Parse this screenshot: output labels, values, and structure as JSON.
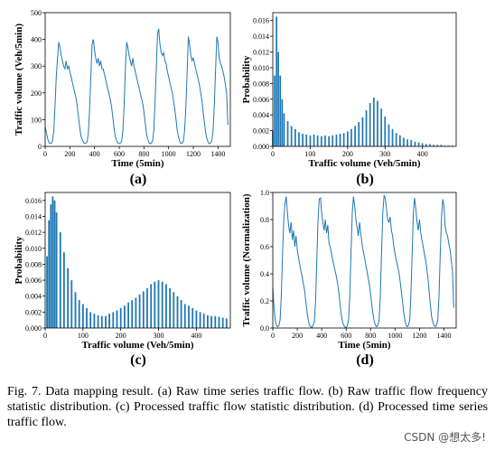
{
  "caption": "Fig. 7.   Data mapping result. (a) Raw time series traffic flow. (b) Raw traffic flow frequency statistic distribution. (c) Processed traffic flow statistic distribution. (d) Processed time series traffic flow.",
  "watermark": "CSDN @想太多!",
  "colors": {
    "line": "#1f77b4",
    "bar": "#1f77b4"
  },
  "chart_data": [
    {
      "id": "a",
      "panel_label": "(a)",
      "type": "line",
      "xlabel": "Time (5min)",
      "ylabel": "Traffic volume (Veh/5min)",
      "xlim": [
        0,
        1500
      ],
      "ylim": [
        0,
        500
      ],
      "xticks": [
        "0",
        "200",
        "400",
        "600",
        "800",
        "1000",
        "1200",
        "1400"
      ],
      "yticks": [
        "0",
        "100",
        "200",
        "300",
        "400",
        "500"
      ],
      "x": [
        0,
        10,
        20,
        30,
        40,
        50,
        60,
        70,
        80,
        90,
        100,
        110,
        120,
        130,
        140,
        150,
        160,
        170,
        180,
        190,
        200,
        210,
        220,
        230,
        240,
        250,
        260,
        270,
        280,
        290,
        300,
        310,
        320,
        330,
        340,
        350,
        360,
        370,
        380,
        390,
        400,
        410,
        420,
        430,
        440,
        450,
        460,
        470,
        480,
        490,
        500,
        510,
        520,
        530,
        540,
        550,
        560,
        570,
        580,
        590,
        600,
        610,
        620,
        630,
        640,
        650,
        660,
        670,
        680,
        690,
        700,
        710,
        720,
        730,
        740,
        750,
        760,
        770,
        780,
        790,
        800,
        810,
        820,
        830,
        840,
        850,
        860,
        870,
        880,
        890,
        900,
        910,
        920,
        930,
        940,
        950,
        960,
        970,
        980,
        990,
        1000,
        1010,
        1020,
        1030,
        1040,
        1050,
        1060,
        1070,
        1080,
        1090,
        1100,
        1110,
        1120,
        1130,
        1140,
        1150,
        1160,
        1170,
        1180,
        1190,
        1200,
        1210,
        1220,
        1230,
        1240,
        1250,
        1260,
        1270,
        1280,
        1290,
        1300,
        1310,
        1320,
        1330,
        1340,
        1350,
        1360,
        1370,
        1380,
        1390,
        1400,
        1410,
        1420,
        1430,
        1440,
        1450,
        1460,
        1470,
        1480
      ],
      "values": [
        75,
        50,
        30,
        15,
        10,
        12,
        20,
        60,
        150,
        260,
        330,
        390,
        370,
        340,
        320,
        300,
        290,
        320,
        290,
        300,
        280,
        260,
        240,
        220,
        200,
        180,
        150,
        110,
        70,
        40,
        25,
        15,
        10,
        12,
        18,
        50,
        140,
        260,
        380,
        400,
        360,
        330,
        310,
        330,
        300,
        320,
        290,
        290,
        270,
        250,
        230,
        210,
        190,
        170,
        140,
        100,
        60,
        35,
        20,
        12,
        10,
        12,
        20,
        60,
        160,
        290,
        390,
        370,
        340,
        320,
        300,
        330,
        300,
        280,
        260,
        240,
        220,
        200,
        180,
        160,
        130,
        90,
        50,
        30,
        15,
        10,
        12,
        20,
        60,
        160,
        290,
        420,
        440,
        380,
        350,
        340,
        350,
        320,
        310,
        280,
        260,
        240,
        220,
        200,
        170,
        140,
        100,
        60,
        35,
        18,
        10,
        12,
        20,
        60,
        150,
        280,
        410,
        380,
        340,
        320,
        330,
        310,
        290,
        270,
        250,
        230,
        200,
        170,
        130,
        90,
        50,
        30,
        15,
        10,
        12,
        20,
        60,
        150,
        280,
        410,
        390,
        330,
        310,
        300,
        280,
        260,
        230,
        200,
        80
      ]
    },
    {
      "id": "b",
      "panel_label": "(b)",
      "type": "bar",
      "xlabel": "Traffic volume (Veh/5min)",
      "ylabel": "Probability",
      "xlim": [
        0,
        490
      ],
      "ylim": [
        0,
        0.017
      ],
      "xticks": [
        "0",
        "100",
        "200",
        "300",
        "400"
      ],
      "yticks": [
        "0.000",
        "0.002",
        "0.004",
        "0.006",
        "0.008",
        "0.010",
        "0.012",
        "0.014",
        "0.016"
      ],
      "x": [
        0,
        5,
        10,
        15,
        20,
        25,
        30,
        40,
        50,
        60,
        70,
        80,
        90,
        100,
        110,
        120,
        130,
        140,
        150,
        160,
        170,
        180,
        190,
        200,
        210,
        220,
        230,
        240,
        250,
        260,
        270,
        280,
        290,
        300,
        310,
        320,
        330,
        340,
        350,
        360,
        370,
        380,
        390,
        400,
        410,
        420,
        430,
        440,
        450,
        460,
        470,
        480
      ],
      "values": [
        0.002,
        0.009,
        0.0165,
        0.012,
        0.009,
        0.006,
        0.0042,
        0.0032,
        0.0026,
        0.0022,
        0.0018,
        0.0016,
        0.0015,
        0.0014,
        0.0015,
        0.0014,
        0.0013,
        0.0014,
        0.0013,
        0.0014,
        0.0015,
        0.0016,
        0.0017,
        0.0019,
        0.0022,
        0.0026,
        0.0031,
        0.0037,
        0.0046,
        0.0055,
        0.0062,
        0.0058,
        0.0048,
        0.0038,
        0.0028,
        0.0022,
        0.0017,
        0.0014,
        0.0011,
        0.0009,
        0.0008,
        0.0006,
        0.0005,
        0.0004,
        0.0003,
        0.0003,
        0.0002,
        0.0002,
        0.0002,
        0.0001,
        0.0001,
        0.0001
      ]
    },
    {
      "id": "c",
      "panel_label": "(c)",
      "type": "bar",
      "xlabel": "Traffic volume (Veh/5min)",
      "ylabel": "Probability",
      "xlim": [
        0,
        490
      ],
      "ylim": [
        0,
        0.017
      ],
      "xticks": [
        "0",
        "100",
        "200",
        "300",
        "400"
      ],
      "yticks": [
        "0.000",
        "0.002",
        "0.004",
        "0.006",
        "0.008",
        "0.010",
        "0.012",
        "0.014",
        "0.016"
      ],
      "x": [
        5,
        10,
        15,
        20,
        25,
        30,
        40,
        50,
        60,
        70,
        80,
        90,
        100,
        110,
        120,
        130,
        140,
        150,
        160,
        170,
        180,
        190,
        200,
        210,
        220,
        230,
        240,
        250,
        260,
        270,
        280,
        290,
        300,
        310,
        320,
        330,
        340,
        350,
        360,
        370,
        380,
        390,
        400,
        410,
        420,
        430,
        440,
        450,
        460,
        470,
        480
      ],
      "values": [
        0.009,
        0.0135,
        0.0155,
        0.0165,
        0.016,
        0.0145,
        0.012,
        0.0095,
        0.0075,
        0.006,
        0.0045,
        0.0035,
        0.003,
        0.0025,
        0.002,
        0.0018,
        0.0016,
        0.0015,
        0.0015,
        0.0018,
        0.002,
        0.0022,
        0.0025,
        0.0028,
        0.0032,
        0.0035,
        0.0038,
        0.0042,
        0.0046,
        0.005,
        0.0055,
        0.0058,
        0.006,
        0.0058,
        0.0055,
        0.005,
        0.0045,
        0.004,
        0.0035,
        0.003,
        0.0028,
        0.0025,
        0.0022,
        0.002,
        0.0018,
        0.0016,
        0.0015,
        0.0015,
        0.0014,
        0.0013,
        0.0012
      ]
    },
    {
      "id": "d",
      "panel_label": "(d)",
      "type": "line",
      "xlabel": "Time (5min)",
      "ylabel": "Traffic volume (Normalization)",
      "xlim": [
        0,
        1500
      ],
      "ylim": [
        0,
        1.0
      ],
      "xticks": [
        "0",
        "200",
        "400",
        "600",
        "800",
        "1000",
        "1200",
        "1400"
      ],
      "yticks": [
        "0.0",
        "0.2",
        "0.4",
        "0.6",
        "0.8",
        "1.0"
      ],
      "x": [
        0,
        10,
        20,
        30,
        40,
        50,
        60,
        70,
        80,
        90,
        100,
        110,
        120,
        130,
        140,
        150,
        160,
        170,
        180,
        190,
        200,
        210,
        220,
        230,
        240,
        250,
        260,
        270,
        280,
        290,
        300,
        310,
        320,
        330,
        340,
        350,
        360,
        370,
        380,
        390,
        400,
        410,
        420,
        430,
        440,
        450,
        460,
        470,
        480,
        490,
        500,
        510,
        520,
        530,
        540,
        550,
        560,
        570,
        580,
        590,
        600,
        610,
        620,
        630,
        640,
        650,
        660,
        670,
        680,
        690,
        700,
        710,
        720,
        730,
        740,
        750,
        760,
        770,
        780,
        790,
        800,
        810,
        820,
        830,
        840,
        850,
        860,
        870,
        880,
        890,
        900,
        910,
        920,
        930,
        940,
        950,
        960,
        970,
        980,
        990,
        1000,
        1010,
        1020,
        1030,
        1040,
        1050,
        1060,
        1070,
        1080,
        1090,
        1100,
        1110,
        1120,
        1130,
        1140,
        1150,
        1160,
        1170,
        1180,
        1190,
        1200,
        1210,
        1220,
        1230,
        1240,
        1250,
        1260,
        1270,
        1280,
        1290,
        1300,
        1310,
        1320,
        1330,
        1340,
        1350,
        1360,
        1370,
        1380,
        1390,
        1400,
        1410,
        1420,
        1430,
        1440,
        1450,
        1460,
        1470,
        1480
      ],
      "values": [
        0.3,
        0.15,
        0.06,
        0.02,
        0.01,
        0.02,
        0.06,
        0.25,
        0.55,
        0.8,
        0.92,
        0.97,
        0.85,
        0.75,
        0.7,
        0.78,
        0.65,
        0.72,
        0.6,
        0.68,
        0.58,
        0.52,
        0.47,
        0.42,
        0.38,
        0.33,
        0.28,
        0.2,
        0.12,
        0.06,
        0.02,
        0.01,
        0.0,
        0.02,
        0.05,
        0.2,
        0.5,
        0.8,
        0.95,
        0.96,
        0.85,
        0.78,
        0.72,
        0.8,
        0.7,
        0.76,
        0.62,
        0.6,
        0.55,
        0.5,
        0.46,
        0.42,
        0.38,
        0.33,
        0.26,
        0.18,
        0.1,
        0.05,
        0.02,
        0.01,
        0.0,
        0.02,
        0.06,
        0.25,
        0.55,
        0.85,
        0.97,
        0.9,
        0.8,
        0.74,
        0.68,
        0.78,
        0.7,
        0.62,
        0.57,
        0.52,
        0.47,
        0.42,
        0.37,
        0.32,
        0.25,
        0.17,
        0.1,
        0.05,
        0.02,
        0.01,
        0.02,
        0.06,
        0.25,
        0.55,
        0.85,
        0.98,
        0.96,
        0.88,
        0.8,
        0.78,
        0.82,
        0.72,
        0.68,
        0.6,
        0.55,
        0.5,
        0.46,
        0.42,
        0.36,
        0.28,
        0.2,
        0.12,
        0.06,
        0.02,
        0.01,
        0.02,
        0.06,
        0.25,
        0.55,
        0.85,
        0.96,
        0.88,
        0.78,
        0.72,
        0.8,
        0.7,
        0.65,
        0.6,
        0.55,
        0.5,
        0.44,
        0.36,
        0.26,
        0.16,
        0.08,
        0.04,
        0.02,
        0.01,
        0.02,
        0.06,
        0.25,
        0.55,
        0.82,
        0.95,
        0.9,
        0.75,
        0.7,
        0.68,
        0.62,
        0.58,
        0.5,
        0.42,
        0.15
      ]
    }
  ]
}
